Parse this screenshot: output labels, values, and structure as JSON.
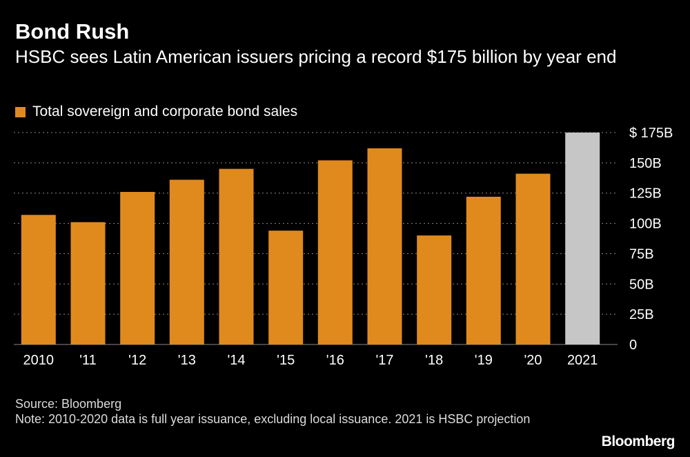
{
  "header": {
    "title": "Bond Rush",
    "subtitle": "HSBC sees Latin American issuers pricing a record $175 billion by year end"
  },
  "legend": {
    "label": "Total sovereign and corporate bond sales",
    "color": "#E08A1E"
  },
  "colors": {
    "bar": "#E08A1E",
    "projection": "#C6C6C6",
    "grid": "#8C8C8C",
    "background": "#000000",
    "text": "#FFFFFF"
  },
  "chart_data": {
    "type": "bar",
    "title": "Bond Rush",
    "subtitle": "HSBC sees Latin American issuers pricing a record $175 billion by year end",
    "categories": [
      "2010",
      "'11",
      "'12",
      "'13",
      "'14",
      "'15",
      "'16",
      "'17",
      "'18",
      "'19",
      "'20",
      "2021"
    ],
    "series": [
      {
        "name": "Total sovereign and corporate bond sales",
        "values": [
          107,
          101,
          126,
          136,
          145,
          94,
          152,
          162,
          90,
          122,
          141,
          175
        ]
      }
    ],
    "projected_categories": [
      "2021"
    ],
    "ylim": [
      0,
      175
    ],
    "yticks": [
      0,
      25,
      50,
      75,
      100,
      125,
      150,
      175
    ],
    "ytick_labels": [
      "0",
      "25B",
      "50B",
      "75B",
      "100B",
      "125B",
      "150B",
      "$ 175B"
    ],
    "xlabel": "",
    "ylabel": "",
    "grid": true,
    "yaxis_side": "right",
    "legend_position": "top-left"
  },
  "footer": {
    "source": "Source: Bloomberg",
    "note": "Note: 2010-2020 data is full year issuance, excluding local issuance. 2021 is HSBC projection",
    "brand": "Bloomberg"
  }
}
